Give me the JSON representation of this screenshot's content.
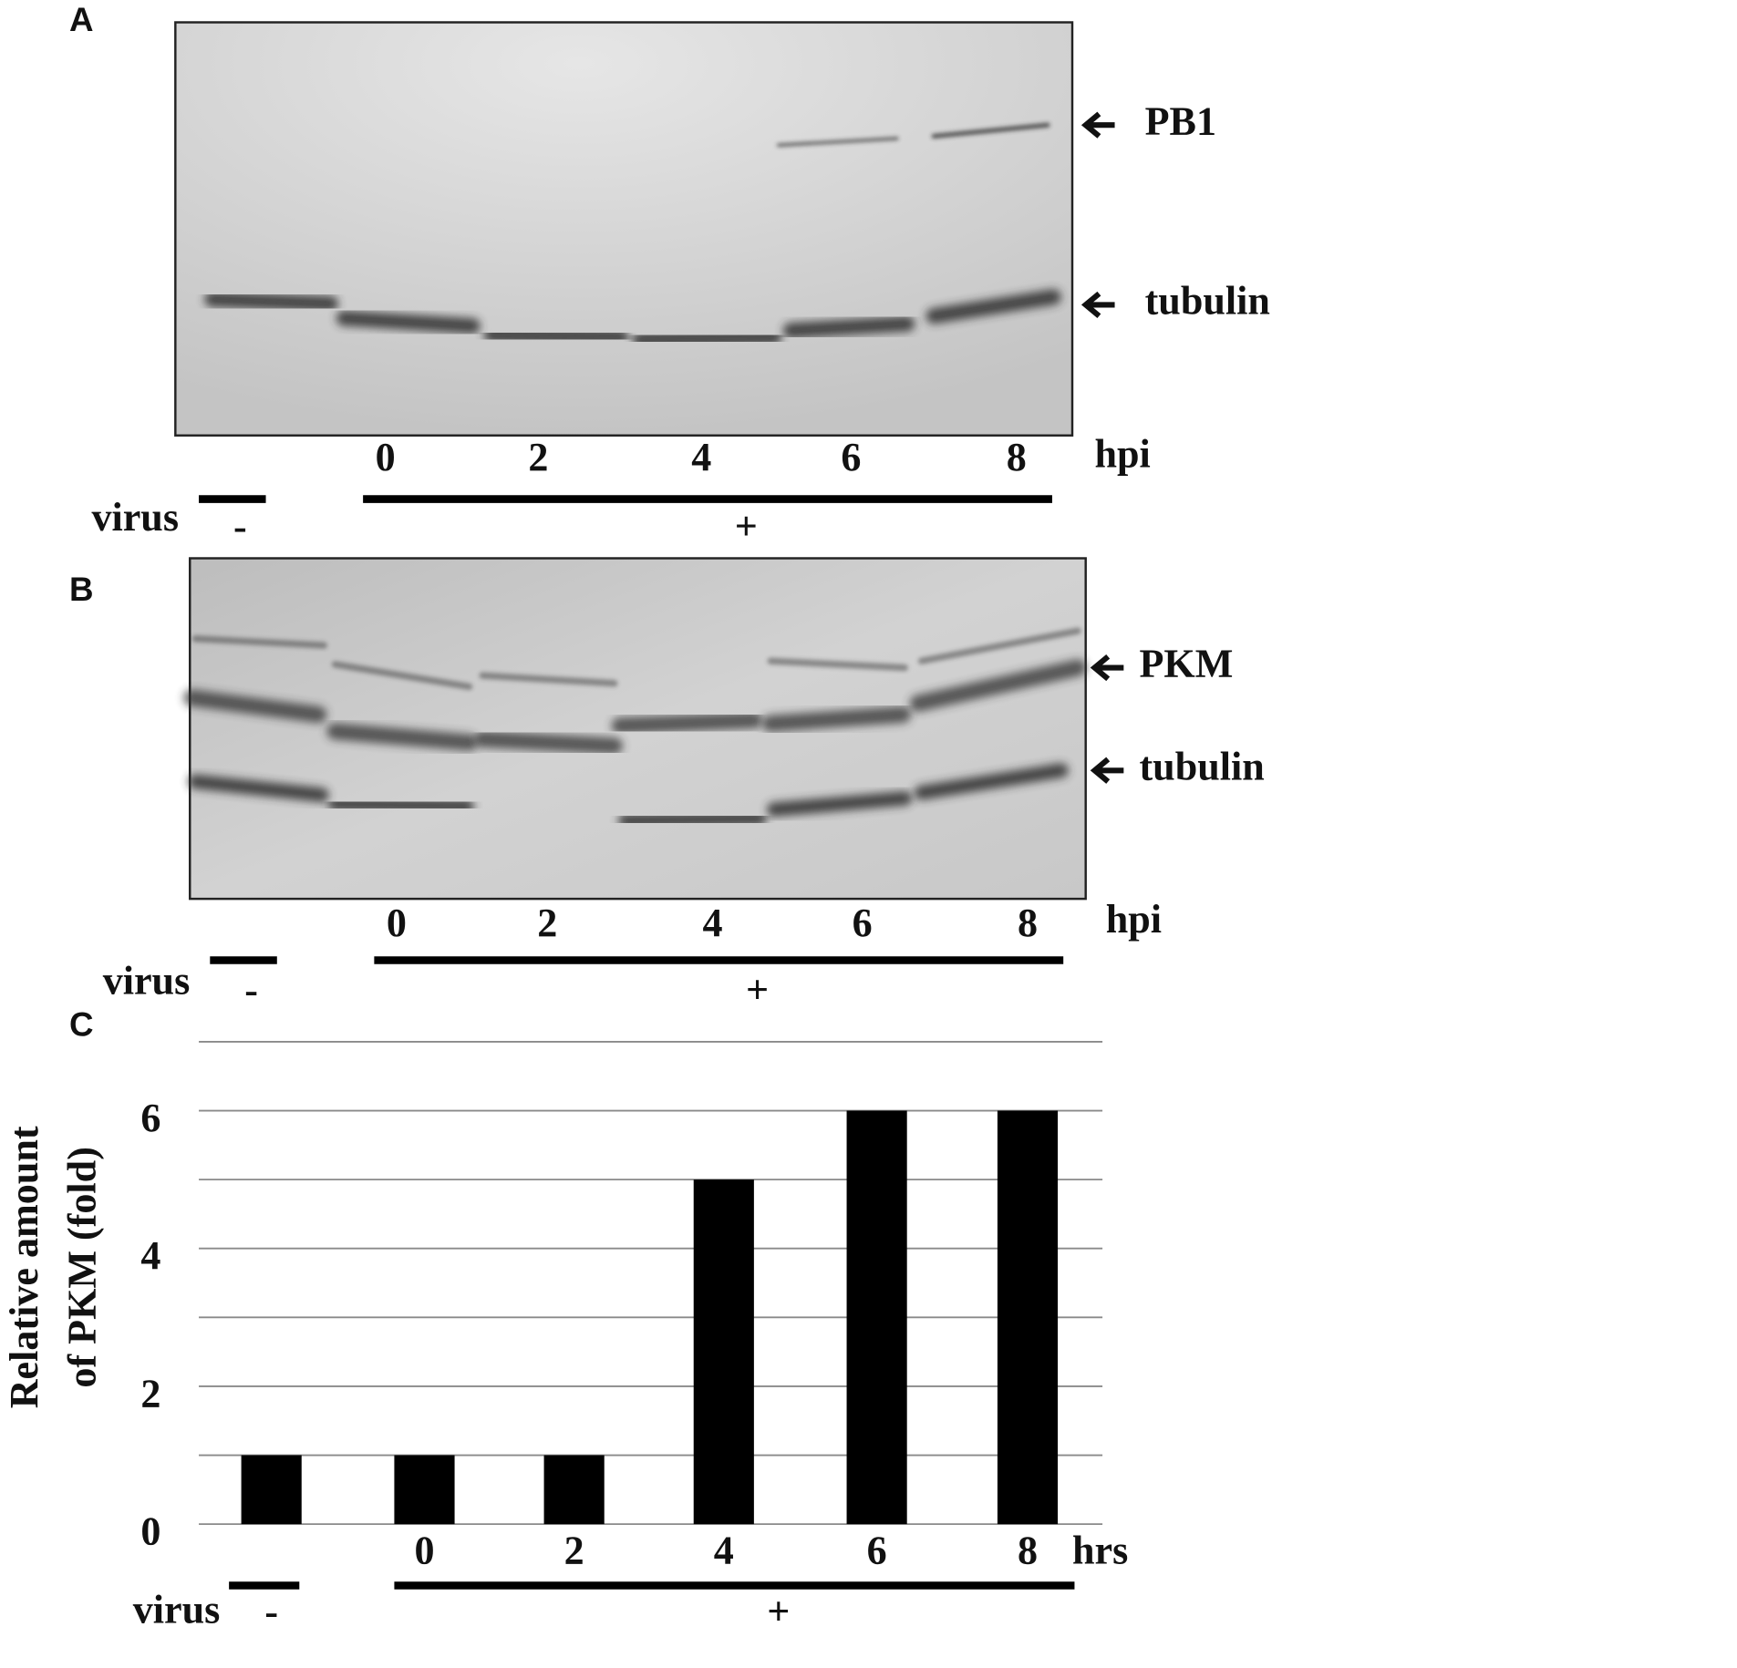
{
  "panel_a": {
    "letter": "A",
    "bands": [
      "PB1",
      "tubulin"
    ],
    "lanes": [
      "0",
      "2",
      "4",
      "6",
      "8"
    ],
    "lane_unit": "hpi",
    "virus": {
      "label": "virus",
      "minus": "-",
      "plus": "+"
    }
  },
  "panel_b": {
    "letter": "B",
    "bands": [
      "PKM",
      "tubulin"
    ],
    "lanes": [
      "0",
      "2",
      "4",
      "6",
      "8"
    ],
    "lane_unit": "hpi",
    "virus": {
      "label": "virus",
      "minus": "-",
      "plus": "+"
    }
  },
  "chart_data": {
    "type": "bar",
    "letter": "C",
    "ylabel_lines": [
      "Relative amount",
      "of PKM (fold)"
    ],
    "categories": [
      null,
      "0",
      "2",
      "4",
      "6",
      "8"
    ],
    "values": [
      1,
      1,
      1,
      5,
      6,
      6
    ],
    "color": "#000000",
    "ylim": [
      0,
      7
    ],
    "yticks": [
      0,
      2,
      4,
      6
    ],
    "minor_yticks": [
      1,
      3,
      5,
      7
    ],
    "grid": true,
    "x_unit": "hrs",
    "virus": {
      "label": "virus",
      "minus": "-",
      "plus": "+"
    }
  }
}
